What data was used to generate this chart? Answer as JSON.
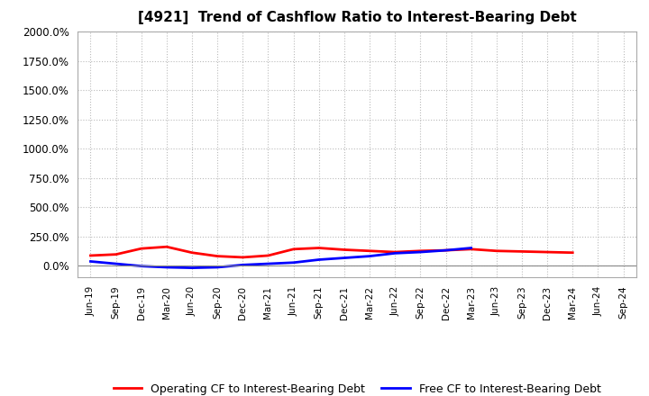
{
  "title": "[4921]  Trend of Cashflow Ratio to Interest-Bearing Debt",
  "x_labels": [
    "Jun-19",
    "Sep-19",
    "Dec-19",
    "Mar-20",
    "Jun-20",
    "Sep-20",
    "Dec-20",
    "Mar-21",
    "Jun-21",
    "Sep-21",
    "Dec-21",
    "Mar-22",
    "Jun-22",
    "Sep-22",
    "Dec-22",
    "Mar-23",
    "Jun-23",
    "Sep-23",
    "Dec-23",
    "Mar-24",
    "Jun-24",
    "Sep-24"
  ],
  "operating_cf": [
    85,
    95,
    145,
    160,
    110,
    80,
    70,
    85,
    140,
    150,
    135,
    125,
    115,
    125,
    130,
    140,
    125,
    120,
    115,
    110,
    null,
    null
  ],
  "free_cf": [
    35,
    15,
    -5,
    -15,
    -20,
    -15,
    5,
    15,
    25,
    50,
    65,
    80,
    105,
    115,
    130,
    150,
    null,
    null,
    null,
    null,
    null,
    null
  ],
  "ylim_min": -100,
  "ylim_max": 2000,
  "yticks": [
    0,
    250,
    500,
    750,
    1000,
    1250,
    1500,
    1750,
    2000
  ],
  "operating_color": "#ff0000",
  "free_color": "#0000ff",
  "background_color": "#ffffff",
  "grid_color": "#bbbbbb",
  "legend_operating": "Operating CF to Interest-Bearing Debt",
  "legend_free": "Free CF to Interest-Bearing Debt"
}
